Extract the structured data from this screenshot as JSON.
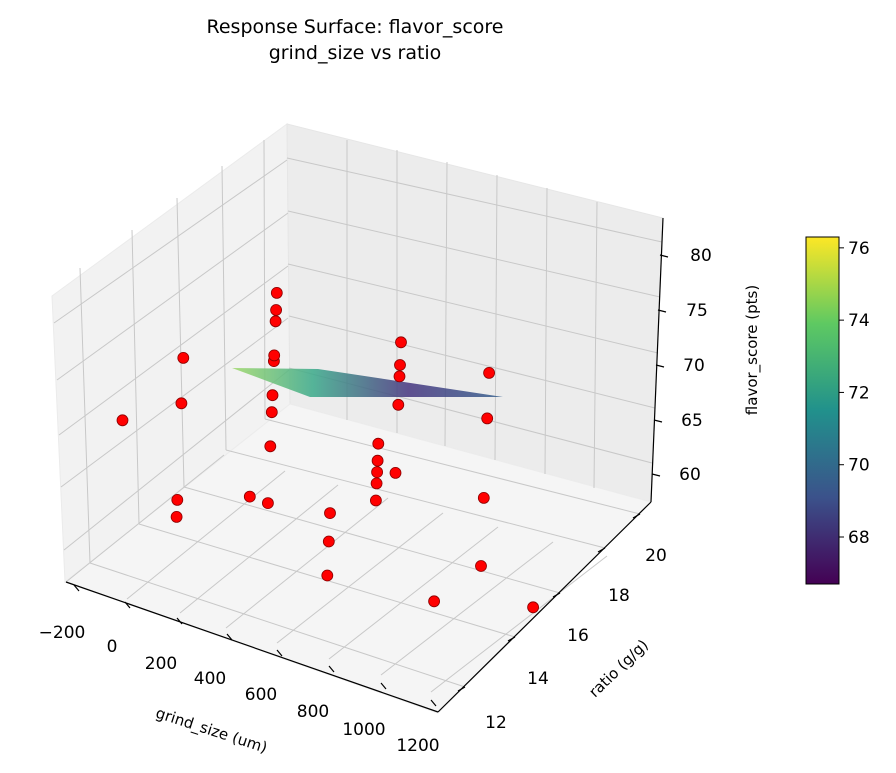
{
  "chart_data": {
    "type": "scatter",
    "title": "Response Surface: flavor_score",
    "subtitle": "grind_size vs ratio",
    "xlabel": "grind_size (um)",
    "ylabel": "ratio (g/g)",
    "zlabel": "flavor_score (pts)",
    "x_ticks": [
      "−200",
      "0",
      "200",
      "400",
      "600",
      "800",
      "1000",
      "1200"
    ],
    "y_ticks": [
      "12",
      "14",
      "16",
      "18",
      "20"
    ],
    "z_ticks": [
      "60",
      "65",
      "70",
      "75",
      "80"
    ],
    "colorbar_ticks": [
      "68",
      "70",
      "72",
      "74",
      "76"
    ],
    "colorbar_range": [
      66.7,
      76.3
    ],
    "colormap": "viridis",
    "point_color": "#ff0000",
    "points": [
      {
        "x": 200,
        "y": 12,
        "z": 66
      },
      {
        "x": 200,
        "y": 12,
        "z": 67.5
      },
      {
        "x": 200,
        "y": 12,
        "z": 76
      },
      {
        "x": 200,
        "y": 12,
        "z": 80
      },
      {
        "x": -100,
        "y": 13,
        "z": 70
      },
      {
        "x": 300,
        "y": 14,
        "z": 64.5
      },
      {
        "x": 200,
        "y": 16,
        "z": 59
      },
      {
        "x": 200,
        "y": 16,
        "z": 64
      },
      {
        "x": 200,
        "y": 16,
        "z": 67
      },
      {
        "x": 200,
        "y": 16,
        "z": 68.5
      },
      {
        "x": 200,
        "y": 16,
        "z": 71.5
      },
      {
        "x": 200,
        "y": 16,
        "z": 72
      },
      {
        "x": 200,
        "y": 16,
        "z": 75
      },
      {
        "x": 200,
        "y": 16,
        "z": 76
      },
      {
        "x": 200,
        "y": 16,
        "z": 77.5
      },
      {
        "x": 600,
        "y": 14,
        "z": 60
      },
      {
        "x": 600,
        "y": 14,
        "z": 63
      },
      {
        "x": 600,
        "y": 14,
        "z": 65.5
      },
      {
        "x": 600,
        "y": 16,
        "z": 62.5
      },
      {
        "x": 600,
        "y": 16,
        "z": 64
      },
      {
        "x": 600,
        "y": 16,
        "z": 65
      },
      {
        "x": 600,
        "y": 16,
        "z": 66
      },
      {
        "x": 600,
        "y": 16,
        "z": 67.5
      },
      {
        "x": 500,
        "y": 18,
        "z": 60
      },
      {
        "x": 500,
        "y": 18,
        "z": 66
      },
      {
        "x": 500,
        "y": 18,
        "z": 68.5
      },
      {
        "x": 500,
        "y": 18,
        "z": 69.5
      },
      {
        "x": 500,
        "y": 18,
        "z": 71.5
      },
      {
        "x": 1000,
        "y": 14,
        "z": 61
      },
      {
        "x": 1000,
        "y": 16,
        "z": 60
      },
      {
        "x": 1000,
        "y": 16,
        "z": 66
      },
      {
        "x": 1000,
        "y": 16,
        "z": 73
      },
      {
        "x": 1000,
        "y": 16,
        "z": 77
      },
      {
        "x": 1200,
        "y": 16,
        "z": 58
      }
    ]
  }
}
